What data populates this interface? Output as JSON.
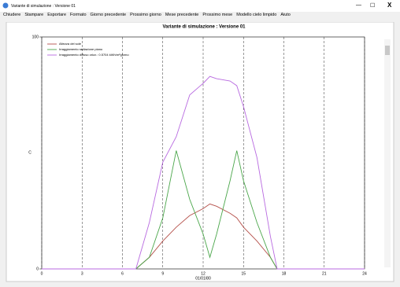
{
  "window": {
    "title": "Variante di simulazione : Versione 01"
  },
  "menu": [
    "Chiudere",
    "Stampare",
    "Esportare",
    "Formato",
    "Giorno precedente",
    "Prossimo giorno",
    "Mese precedente",
    "Prossimo mese",
    "Modello cielo limpido",
    "Aiuto"
  ],
  "chart_data": {
    "type": "line",
    "title": "Variante di simulazione : Versione 01",
    "x_label": "01/01/80",
    "y_label": "C",
    "x": [
      0,
      7,
      8,
      9,
      10,
      11,
      12,
      12.5,
      13,
      14,
      14.5,
      15,
      16,
      17,
      17.5,
      24
    ],
    "series": [
      {
        "name": "Altezza del sole",
        "color": "#b5504a",
        "values": [
          0,
          0,
          5,
          12,
          18,
          23,
          26,
          28,
          27,
          24,
          22,
          18,
          12,
          5,
          0,
          0
        ]
      },
      {
        "name": "Irraggiamento radiazione piano",
        "color": "#4aa64a",
        "values": [
          0,
          0,
          5,
          22,
          51,
          30,
          15,
          5,
          15,
          38,
          51,
          38,
          20,
          5,
          0,
          0
        ]
      },
      {
        "name": "Irraggiamento diffuso orizz.: 0.5704 kWh/m²giorno",
        "color": "#b86ae0",
        "values": [
          0,
          0,
          20,
          46,
          57,
          75,
          80,
          83,
          82,
          81,
          79,
          70,
          48,
          14,
          0,
          0
        ]
      }
    ],
    "xlim": [
      0,
      24
    ],
    "xticks": [
      0,
      3,
      6,
      9,
      12,
      15,
      18,
      21,
      24
    ],
    "ylim": [
      0,
      100
    ],
    "yticks": [
      0,
      100
    ],
    "grid": "x-dashed"
  }
}
